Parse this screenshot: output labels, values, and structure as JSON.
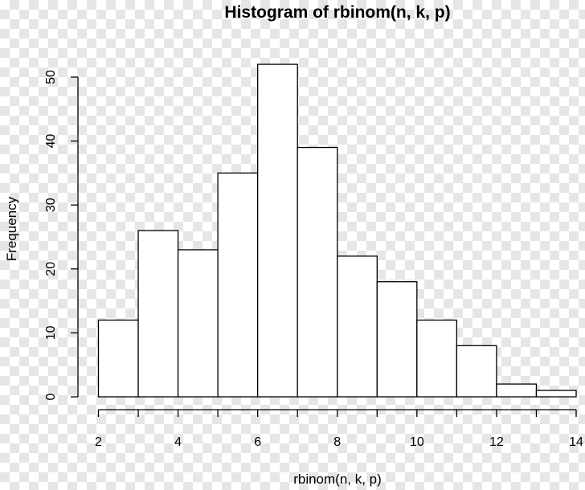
{
  "chart_data": {
    "type": "bar",
    "title": "Histogram of rbinom(n, k, p)",
    "xlabel": "rbinom(n, k, p)",
    "ylabel": "Frequency",
    "bins": [
      {
        "from": 2,
        "to": 3,
        "count": 12
      },
      {
        "from": 3,
        "to": 4,
        "count": 26
      },
      {
        "from": 4,
        "to": 5,
        "count": 23
      },
      {
        "from": 5,
        "to": 6,
        "count": 35
      },
      {
        "from": 6,
        "to": 7,
        "count": 52
      },
      {
        "from": 7,
        "to": 8,
        "count": 39
      },
      {
        "from": 8,
        "to": 9,
        "count": 22
      },
      {
        "from": 9,
        "to": 10,
        "count": 18
      },
      {
        "from": 10,
        "to": 11,
        "count": 12
      },
      {
        "from": 11,
        "to": 12,
        "count": 8
      },
      {
        "from": 12,
        "to": 13,
        "count": 2
      },
      {
        "from": 13,
        "to": 14,
        "count": 1
      }
    ],
    "xlim": [
      2,
      14
    ],
    "ylim": [
      0,
      52
    ],
    "xticks": [
      "2",
      "4",
      "6",
      "8",
      "10",
      "12",
      "14"
    ],
    "yticks": [
      "0",
      "10",
      "20",
      "30",
      "40",
      "50"
    ],
    "grid": false,
    "legend": "none"
  },
  "background": {
    "pattern": "checkerboard",
    "color_a": "#ffffff",
    "color_b": "#e6e6e6"
  }
}
